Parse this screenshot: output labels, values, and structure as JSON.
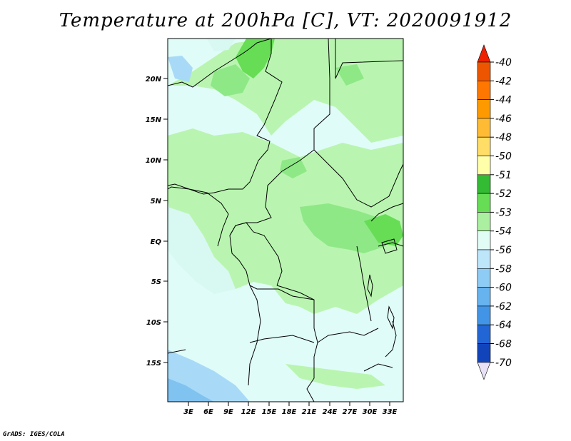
{
  "title": "Temperature at 200hPa [C], VT: 2020091912",
  "credit": "GrADS: IGES/COLA",
  "lat_ticks": [
    "20N",
    "15N",
    "10N",
    "5N",
    "EQ",
    "5S",
    "10S",
    "15S"
  ],
  "lon_ticks": [
    "3E",
    "6E",
    "9E",
    "12E",
    "15E",
    "18E",
    "21E",
    "24E",
    "27E",
    "30E",
    "33E"
  ],
  "colorbar": {
    "labels": [
      "-40",
      "-42",
      "-44",
      "-46",
      "-48",
      "-50",
      "-51",
      "-52",
      "-53",
      "-54",
      "-56",
      "-58",
      "-60",
      "-62",
      "-64",
      "-68",
      "-70"
    ],
    "colors": [
      "#cc2200",
      "#ee5500",
      "#ff7700",
      "#ff9900",
      "#ffbb33",
      "#ffdd66",
      "#ffffaa",
      "#33bb33",
      "#66dd55",
      "#aaf0a0",
      "#e0fcf4",
      "#bde6fb",
      "#8ecbf5",
      "#66b3f0",
      "#4295e6",
      "#2266d6",
      "#1144bb",
      "#000088",
      "#e8e0f4"
    ],
    "top_color": "#ee2200",
    "bottom_color": "#e8e0f4"
  },
  "field_colors": {
    "light_green": "#b9f5b0",
    "mid_green": "#8ee886",
    "dark_green": "#66dd55",
    "very_light_cyan": "#e0fcf8",
    "light_cyan": "#d0f8f0",
    "light_blue": "#a8daf8",
    "blue": "#80c2f0"
  }
}
